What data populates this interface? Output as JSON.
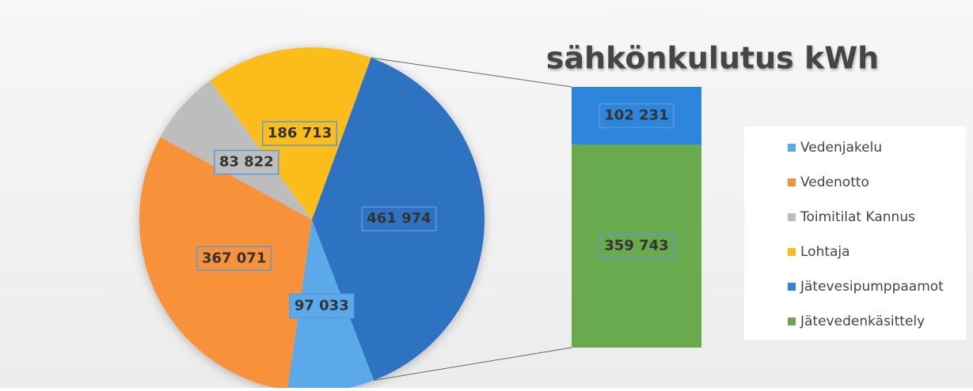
{
  "chart_data": {
    "type": "pie-of-bar",
    "title": "sähkönkulutus kWh",
    "categories": [
      "Vedenjakelu",
      "Vedenotto",
      "Toimitilat Kannus",
      "Lohtaja",
      "Jätevesipumppaamot",
      "Jätevedenkäsittely"
    ],
    "values": [
      97033,
      367071,
      83822,
      186713,
      102231,
      359743
    ],
    "value_labels": [
      "97 033",
      "367 071",
      "83 822",
      "186 713",
      "102 231",
      "359 743"
    ],
    "colors": [
      "#5ba9ea",
      "#f7923a",
      "#bdbdbd",
      "#fbbd1d",
      "#2e86dc",
      "#6aaa4f"
    ],
    "secondary_count": 2,
    "other_value": 461974,
    "other_value_label": "461 974",
    "other_color": "#2f72c2",
    "legend": "right"
  }
}
